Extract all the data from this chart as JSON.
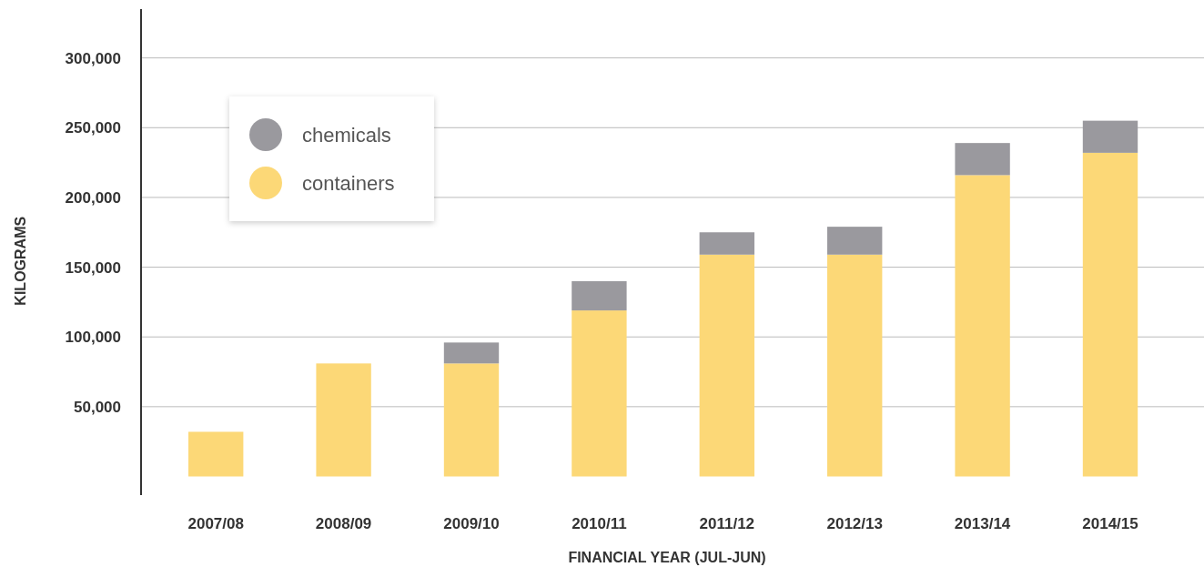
{
  "chart_data": {
    "type": "bar",
    "stacked": true,
    "xlabel": "FINANCIAL YEAR (JUL-JUN)",
    "ylabel": "KILOGRAMS",
    "categories": [
      "2007/08",
      "2008/09",
      "2009/10",
      "2010/11",
      "2011/12",
      "2012/13",
      "2013/14",
      "2014/15"
    ],
    "series": [
      {
        "name": "containers",
        "color": "#fcd877",
        "values": [
          32000,
          81000,
          81000,
          119000,
          159000,
          159000,
          216000,
          232000
        ]
      },
      {
        "name": "chemicals",
        "color": "#9a999e",
        "values": [
          null,
          null,
          15000,
          21000,
          16000,
          20000,
          23000,
          23000
        ]
      }
    ],
    "ylim": [
      0,
      335000
    ],
    "yticks": [
      {
        "value": 50000,
        "label": "50,000"
      },
      {
        "value": 100000,
        "label": "100,000"
      },
      {
        "value": 150000,
        "label": "150,000"
      },
      {
        "value": 200000,
        "label": "200,000"
      },
      {
        "value": 250000,
        "label": "250,000"
      },
      {
        "value": 300000,
        "label": "300,000"
      }
    ],
    "grid": "y",
    "legend": "top left"
  }
}
